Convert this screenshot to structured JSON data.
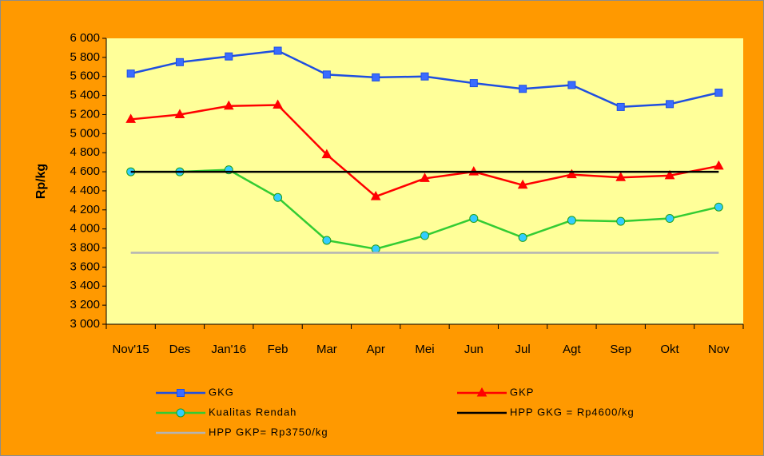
{
  "chart_data": {
    "type": "line",
    "y_label": "Rp/kg",
    "categories": [
      "Nov'15",
      "Des",
      "Jan'16",
      "Feb",
      "Mar",
      "Apr",
      "Mei",
      "Jun",
      "Jul",
      "Agt",
      "Sep",
      "Okt",
      "Nov"
    ],
    "ylim": [
      3000,
      6000
    ],
    "yticks": [
      {
        "value": 3000,
        "label": "3 000"
      },
      {
        "value": 3200,
        "label": "3 200"
      },
      {
        "value": 3400,
        "label": "3 400"
      },
      {
        "value": 3600,
        "label": "3 600"
      },
      {
        "value": 3800,
        "label": "3 800"
      },
      {
        "value": 4000,
        "label": "4 000"
      },
      {
        "value": 4200,
        "label": "4 200"
      },
      {
        "value": 4400,
        "label": "4 400"
      },
      {
        "value": 4600,
        "label": "4 600"
      },
      {
        "value": 4800,
        "label": "4 800"
      },
      {
        "value": 5000,
        "label": "5 000"
      },
      {
        "value": 5200,
        "label": "5 200"
      },
      {
        "value": 5400,
        "label": "5 400"
      },
      {
        "value": 5600,
        "label": "5 600"
      },
      {
        "value": 5800,
        "label": "5 800"
      },
      {
        "value": 6000,
        "label": "6 000"
      }
    ],
    "grid": false,
    "series": [
      {
        "name": "GKG",
        "color": "#1F4FE0",
        "marker": "square",
        "marker_color": "#3A6CFF",
        "values": [
          5630,
          5750,
          5810,
          5870,
          5620,
          5590,
          5600,
          5530,
          5470,
          5510,
          5280,
          5310,
          5430
        ]
      },
      {
        "name": "GKP",
        "color": "#FF0000",
        "marker": "triangle",
        "marker_color": "#FF0000",
        "values": [
          5150,
          5200,
          5290,
          5300,
          4780,
          4340,
          4530,
          4600,
          4460,
          4570,
          4540,
          4560,
          4660
        ]
      },
      {
        "name": "Kualitas Rendah",
        "color": "#33CC33",
        "marker": "circle",
        "marker_color": "#33CCFF",
        "values": [
          4600,
          4600,
          4620,
          4330,
          3880,
          3790,
          3930,
          4110,
          3910,
          4090,
          4080,
          4110,
          4230
        ]
      },
      {
        "name": "HPP GKG = Rp4600/kg",
        "color": "#000000",
        "marker": "none",
        "values": [
          4600,
          4600,
          4600,
          4600,
          4600,
          4600,
          4600,
          4600,
          4600,
          4600,
          4600,
          4600,
          4600
        ]
      },
      {
        "name": "HPP GKP= Rp3750/kg",
        "color": "#B4B4B4",
        "marker": "none",
        "values": [
          3750,
          3750,
          3750,
          3750,
          3750,
          3750,
          3750,
          3750,
          3750,
          3750,
          3750,
          3750,
          3750
        ]
      }
    ]
  }
}
